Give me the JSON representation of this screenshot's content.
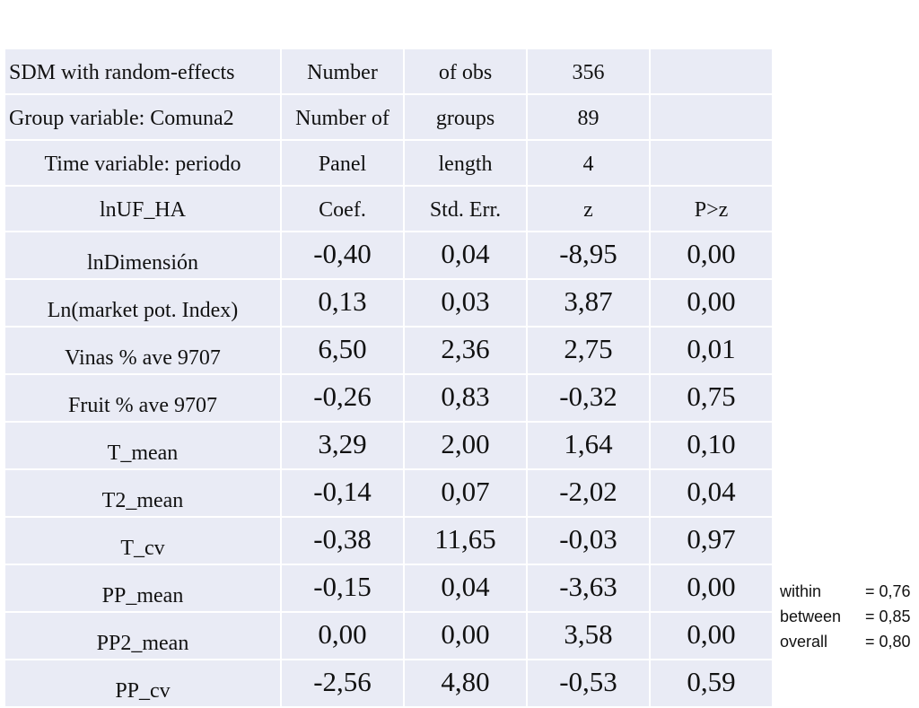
{
  "header_rows": [
    [
      "SDM with random-effects",
      "Number",
      "of obs",
      "356",
      ""
    ],
    [
      "Group variable: Comuna2",
      "Number of",
      "groups",
      "89",
      ""
    ],
    [
      "Time variable: periodo",
      "Panel",
      "length",
      "4",
      ""
    ],
    [
      "lnUF_HA",
      "Coef.",
      "Std. Err.",
      "z",
      "P>z"
    ]
  ],
  "rows": [
    {
      "var": "lnDimensión",
      "coef": "-0,40",
      "se": "0,04",
      "z": "-8,95",
      "p": "0,00"
    },
    {
      "var": "Ln(market pot. Index)",
      "coef": "0,13",
      "se": "0,03",
      "z": "3,87",
      "p": "0,00"
    },
    {
      "var": "Vinas % ave 9707",
      "coef": "6,50",
      "se": "2,36",
      "z": "2,75",
      "p": "0,01"
    },
    {
      "var": "Fruit % ave 9707",
      "coef": "-0,26",
      "se": "0,83",
      "z": "-0,32",
      "p": "0,75"
    },
    {
      "var": "T_mean",
      "coef": "3,29",
      "se": "2,00",
      "z": "1,64",
      "p": "0,10"
    },
    {
      "var": "T2_mean",
      "coef": "-0,14",
      "se": "0,07",
      "z": "-2,02",
      "p": "0,04"
    },
    {
      "var": "T_cv",
      "coef": "-0,38",
      "se": "11,65",
      "z": "-0,03",
      "p": "0,97"
    },
    {
      "var": "PP_mean",
      "coef": "-0,15",
      "se": "0,04",
      "z": "-3,63",
      "p": "0,00"
    },
    {
      "var": "PP2_mean",
      "coef": "0,00",
      "se": "0,00",
      "z": "3,58",
      "p": "0,00"
    },
    {
      "var": "PP_cv",
      "coef": "-2,56",
      "se": "4,80",
      "z": "-0,53",
      "p": "0,59"
    }
  ],
  "r_squared": [
    {
      "label": "within",
      "value": "= 0,76"
    },
    {
      "label": "between",
      "value": "= 0,85"
    },
    {
      "label": "overall",
      "value": "= 0,80"
    }
  ]
}
